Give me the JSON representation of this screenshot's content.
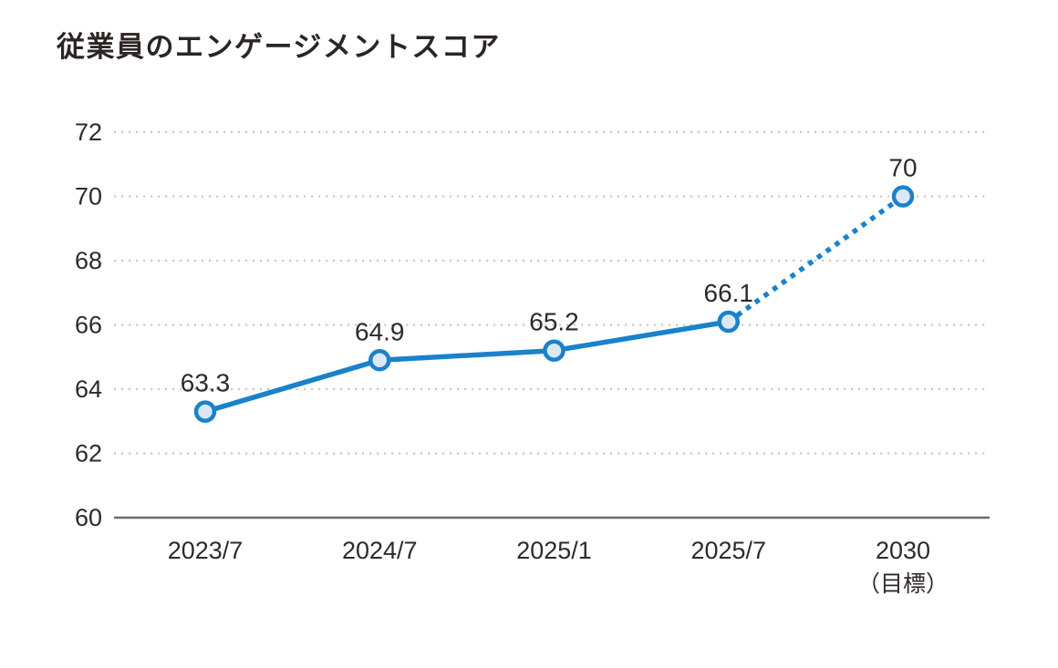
{
  "page": {
    "background": "#ffffff"
  },
  "chart_data": {
    "type": "line",
    "title": "従業員のエンゲージメントスコア",
    "categories": [
      "2023/7",
      "2024/7",
      "2025/1",
      "2025/7",
      "2030"
    ],
    "category_sublabels": [
      "",
      "",
      "",
      "",
      "（目標）"
    ],
    "series": [
      {
        "values": [
          63.3,
          64.9,
          65.2,
          66.1,
          70
        ],
        "point_labels": [
          "63.3",
          "64.9",
          "65.2",
          "66.1",
          "70"
        ],
        "dotted_from_index": 3
      }
    ],
    "ylim": [
      60,
      72
    ],
    "yticks": [
      60,
      62,
      64,
      66,
      68,
      70,
      72
    ],
    "grid": "horizontal-dotted",
    "legend": "none",
    "colors": {
      "line": "#1a82ca",
      "marker_fill": "#dde8f5",
      "marker_stroke": "#1a82ca",
      "gridline": "#c9c9c9",
      "axis_line": "#6f6b6a",
      "text": "#2f2a28"
    }
  }
}
